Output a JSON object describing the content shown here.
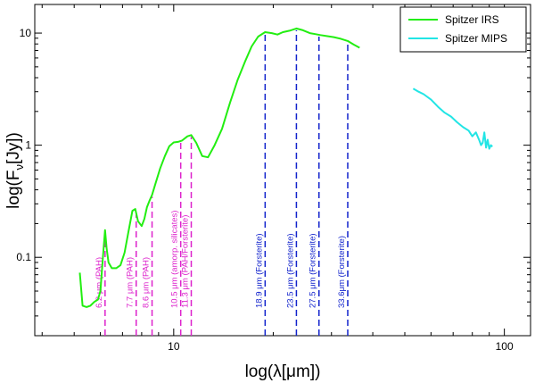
{
  "chart_data": {
    "type": "line",
    "xscale": "log",
    "yscale": "log",
    "xlim": [
      3.8,
      120
    ],
    "ylim": [
      0.02,
      18
    ],
    "xlabel": "log(λ[μm])",
    "ylabel": "log(F_ν[Jy])",
    "ylabel_main": "log(F",
    "ylabel_sub": "ν",
    "ylabel_tail": "[Jy])",
    "x_ticks": [
      10,
      100
    ],
    "x_tick_labels": [
      "10",
      "100"
    ],
    "y_ticks": [
      0.1,
      1,
      10
    ],
    "y_tick_labels": [
      "0.1",
      "1",
      "10"
    ],
    "legend_position": "top-right",
    "series": [
      {
        "name": "Spitzer IRS",
        "color": "#22ee11",
        "x": [
          5.2,
          5.3,
          5.45,
          5.6,
          5.75,
          5.9,
          6.0,
          6.1,
          6.2,
          6.27,
          6.35,
          6.5,
          6.7,
          6.9,
          7.1,
          7.3,
          7.5,
          7.65,
          7.8,
          8.0,
          8.15,
          8.3,
          8.45,
          8.6,
          8.8,
          9.1,
          9.4,
          9.7,
          10.0,
          10.3,
          10.6,
          11.0,
          11.3,
          11.7,
          12.2,
          12.7,
          13.3,
          14.0,
          14.8,
          15.6,
          16.4,
          17.2,
          18.0,
          18.9,
          19.8,
          20.6,
          21.4,
          22.4,
          23.5,
          24.6,
          25.8,
          26.8,
          27.8,
          29.0,
          30.5,
          32.0,
          33.6,
          35.0,
          36.5
        ],
        "y": [
          0.073,
          0.037,
          0.036,
          0.037,
          0.04,
          0.042,
          0.05,
          0.095,
          0.175,
          0.12,
          0.09,
          0.08,
          0.08,
          0.085,
          0.11,
          0.17,
          0.26,
          0.27,
          0.21,
          0.19,
          0.22,
          0.28,
          0.32,
          0.36,
          0.45,
          0.62,
          0.8,
          0.98,
          1.06,
          1.07,
          1.1,
          1.2,
          1.23,
          1.05,
          0.8,
          0.78,
          1.0,
          1.4,
          2.4,
          3.8,
          5.5,
          7.6,
          9.3,
          10.2,
          10.0,
          9.7,
          10.2,
          10.5,
          11.0,
          10.6,
          10.0,
          9.8,
          9.6,
          9.4,
          9.2,
          8.9,
          8.5,
          7.9,
          7.4
        ]
      },
      {
        "name": "Spitzer MIPS",
        "color": "#22e5e5",
        "x": [
          53,
          55,
          57,
          60,
          63,
          66,
          69,
          72,
          75,
          78,
          80,
          82,
          84,
          85,
          86,
          87,
          88,
          89,
          90,
          91,
          92
        ],
        "y": [
          3.2,
          3.0,
          2.85,
          2.55,
          2.2,
          1.95,
          1.8,
          1.6,
          1.45,
          1.35,
          1.2,
          1.3,
          1.1,
          1.0,
          1.05,
          1.3,
          0.95,
          1.12,
          0.93,
          1.0,
          0.97
        ]
      }
    ],
    "features": [
      {
        "x": 6.2,
        "label": "6.2 μm (PAH)",
        "group": "pah"
      },
      {
        "x": 7.7,
        "label": "7.7 μm (PAH)",
        "group": "pah"
      },
      {
        "x": 8.6,
        "label": "8.6 μm (PAH)",
        "group": "pah"
      },
      {
        "x": 10.5,
        "label": "10.5 μm (amorp. silicates)",
        "group": "pah"
      },
      {
        "x": 11.3,
        "label": "11.3 μm (PAH/Forsterite)",
        "group": "pah"
      },
      {
        "x": 18.9,
        "label": "18.9 μm (Forsterite)",
        "group": "forsterite"
      },
      {
        "x": 23.5,
        "label": "23.5 μm (Forsterite)",
        "group": "forsterite"
      },
      {
        "x": 27.5,
        "label": "27.5 μm (Forsterite)",
        "group": "forsterite"
      },
      {
        "x": 33.6,
        "label": "33.6μm (Forsterite)",
        "group": "forsterite"
      }
    ],
    "feature_colors": {
      "pah": "#dd22cc",
      "forsterite": "#1122cc"
    }
  }
}
